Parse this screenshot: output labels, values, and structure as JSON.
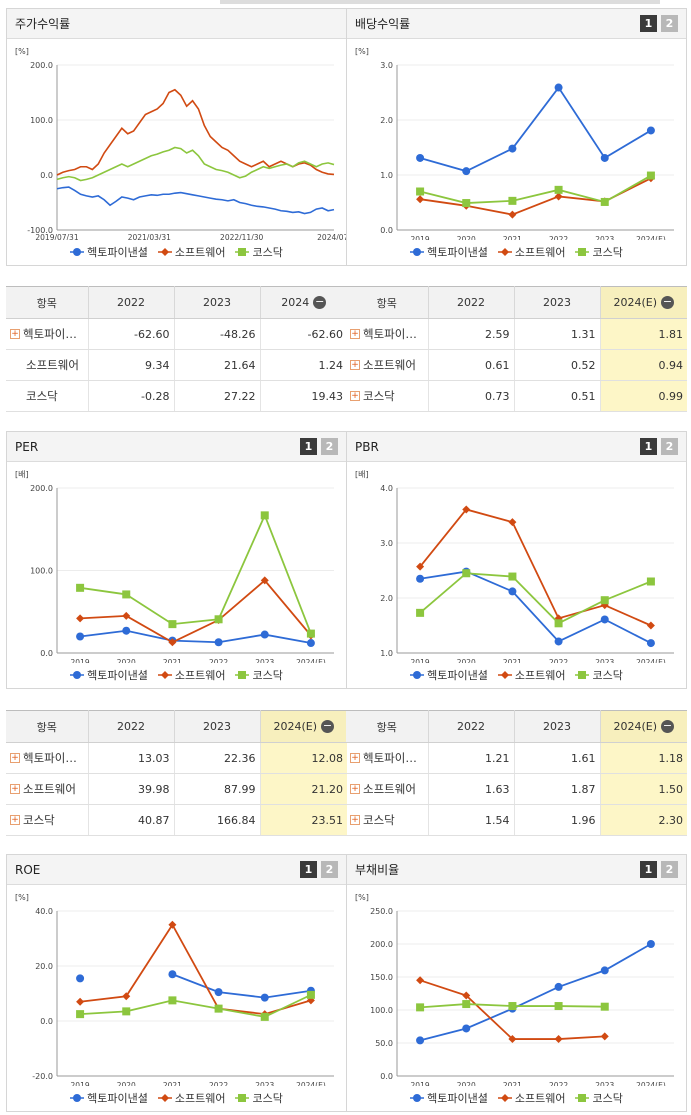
{
  "panels": [
    {
      "id": "return",
      "title": "주가수익률",
      "pager": null,
      "unit": "[%]",
      "legend": [
        "헥토파이낸셜",
        "소프트웨어",
        "코스닥"
      ],
      "table": {
        "header": [
          "항목",
          "2022",
          "2023",
          "2024"
        ],
        "rows": [
          {
            "name": "헥토파이…",
            "expand": true,
            "values": [
              "-62.60",
              "-48.26",
              "-62.60"
            ]
          },
          {
            "name": "소프트웨어",
            "expand": false,
            "values": [
              "9.34",
              "21.64",
              "1.24"
            ]
          },
          {
            "name": "코스닥",
            "expand": false,
            "values": [
              "-0.28",
              "27.22",
              "19.43"
            ]
          }
        ]
      }
    },
    {
      "id": "dividend",
      "title": "배당수익률",
      "pager": [
        "1",
        "2"
      ],
      "unit": "[%]",
      "legend": [
        "헥토파이낸셜",
        "소프트웨어",
        "코스닥"
      ],
      "table": {
        "header": [
          "항목",
          "2022",
          "2023",
          "2024(E)"
        ],
        "rows": [
          {
            "name": "헥토파이…",
            "expand": true,
            "values": [
              "2.59",
              "1.31",
              "1.81"
            ]
          },
          {
            "name": "소프트웨어",
            "expand": true,
            "values": [
              "0.61",
              "0.52",
              "0.94"
            ]
          },
          {
            "name": "코스닥",
            "expand": true,
            "values": [
              "0.73",
              "0.51",
              "0.99"
            ]
          }
        ]
      }
    },
    {
      "id": "per",
      "title": "PER",
      "pager": [
        "1",
        "2"
      ],
      "unit": "[배]",
      "legend": [
        "헥토파이낸셜",
        "소프트웨어",
        "코스닥"
      ],
      "table": {
        "header": [
          "항목",
          "2022",
          "2023",
          "2024(E)"
        ],
        "rows": [
          {
            "name": "헥토파이…",
            "expand": true,
            "values": [
              "13.03",
              "22.36",
              "12.08"
            ]
          },
          {
            "name": "소프트웨어",
            "expand": true,
            "values": [
              "39.98",
              "87.99",
              "21.20"
            ]
          },
          {
            "name": "코스닥",
            "expand": true,
            "values": [
              "40.87",
              "166.84",
              "23.51"
            ]
          }
        ]
      }
    },
    {
      "id": "pbr",
      "title": "PBR",
      "pager": [
        "1",
        "2"
      ],
      "unit": "[배]",
      "legend": [
        "헥토파이낸셜",
        "소프트웨어",
        "코스닥"
      ],
      "table": {
        "header": [
          "항목",
          "2022",
          "2023",
          "2024(E)"
        ],
        "rows": [
          {
            "name": "헥토파이…",
            "expand": true,
            "values": [
              "1.21",
              "1.61",
              "1.18"
            ]
          },
          {
            "name": "소프트웨어",
            "expand": true,
            "values": [
              "1.63",
              "1.87",
              "1.50"
            ]
          },
          {
            "name": "코스닥",
            "expand": true,
            "values": [
              "1.54",
              "1.96",
              "2.30"
            ]
          }
        ]
      }
    },
    {
      "id": "roe",
      "title": "ROE",
      "pager": [
        "1",
        "2"
      ],
      "unit": "[%]",
      "legend": [
        "헥토파이낸셜",
        "소프트웨어",
        "코스닥"
      ]
    },
    {
      "id": "debt",
      "title": "부채비율",
      "pager": [
        "1",
        "2"
      ],
      "unit": "[%]",
      "legend": [
        "헥토파이낸셜",
        "소프트웨어",
        "코스닥"
      ]
    }
  ],
  "colors": {
    "hecto": "#2e6bd6",
    "software": "#d14a12",
    "kosdaq": "#8cc63e"
  },
  "chart_data": [
    {
      "id": "return",
      "type": "line",
      "ylim": [
        -100,
        200
      ],
      "yticks": [
        "200.0",
        "100.0",
        "0.0",
        "-100.0"
      ],
      "xtick_labels": [
        "2019/07/31",
        "2021/03/31",
        "2022/11/30",
        "2024/07/"
      ],
      "series": [
        {
          "name": "헥토파이낸셜",
          "values": [
            -25,
            -23,
            -22,
            -28,
            -35,
            -38,
            -40,
            -38,
            -45,
            -55,
            -48,
            -40,
            -42,
            -45,
            -40,
            -38,
            -36,
            -37,
            -35,
            -35,
            -33,
            -32,
            -34,
            -36,
            -38,
            -40,
            -42,
            -44,
            -45,
            -47,
            -45,
            -50,
            -52,
            -55,
            -57,
            -58,
            -60,
            -62,
            -65,
            -66,
            -68,
            -67,
            -70,
            -68,
            -62,
            -60,
            -65,
            -63
          ]
        },
        {
          "name": "소프트웨어",
          "values": [
            0,
            5,
            8,
            10,
            15,
            15,
            10,
            20,
            40,
            55,
            70,
            85,
            75,
            80,
            95,
            110,
            115,
            120,
            130,
            150,
            155,
            145,
            125,
            135,
            120,
            90,
            70,
            60,
            50,
            45,
            35,
            25,
            20,
            15,
            20,
            25,
            15,
            20,
            25,
            20,
            15,
            20,
            22,
            18,
            10,
            5,
            2,
            1
          ]
        },
        {
          "name": "코스닥",
          "values": [
            -8,
            -5,
            -3,
            -5,
            -10,
            -8,
            -5,
            0,
            5,
            10,
            15,
            20,
            15,
            20,
            25,
            30,
            35,
            38,
            42,
            45,
            50,
            48,
            40,
            45,
            35,
            20,
            15,
            10,
            8,
            5,
            0,
            -5,
            -2,
            5,
            10,
            15,
            12,
            15,
            18,
            20,
            15,
            22,
            25,
            20,
            15,
            20,
            22,
            19
          ]
        }
      ]
    },
    {
      "id": "dividend",
      "type": "line",
      "ylim": [
        0,
        3
      ],
      "yticks": [
        "3.0",
        "2.0",
        "1.0",
        "0.0"
      ],
      "categories": [
        "2019",
        "2020",
        "2021",
        "2022",
        "2023",
        "2024(E)"
      ],
      "series": [
        {
          "name": "헥토파이낸셜",
          "values": [
            1.31,
            1.07,
            1.48,
            2.59,
            1.31,
            1.81
          ]
        },
        {
          "name": "소프트웨어",
          "values": [
            0.56,
            0.44,
            0.28,
            0.61,
            0.52,
            0.94
          ]
        },
        {
          "name": "코스닥",
          "values": [
            0.7,
            0.49,
            0.53,
            0.73,
            0.51,
            0.99
          ]
        }
      ]
    },
    {
      "id": "per",
      "type": "line",
      "ylim": [
        0,
        200
      ],
      "yticks": [
        "200.0",
        "100.0",
        "0.0"
      ],
      "categories": [
        "2019",
        "2020",
        "2021",
        "2022",
        "2023",
        "2024(E)"
      ],
      "series": [
        {
          "name": "헥토파이낸셜",
          "values": [
            20,
            27,
            15,
            13.03,
            22.36,
            12.08
          ]
        },
        {
          "name": "소프트웨어",
          "values": [
            42,
            45,
            13,
            39.98,
            87.99,
            21.2
          ]
        },
        {
          "name": "코스닥",
          "values": [
            79,
            71,
            35,
            40.87,
            166.84,
            23.51
          ]
        }
      ]
    },
    {
      "id": "pbr",
      "type": "line",
      "ylim": [
        1,
        4
      ],
      "yticks": [
        "4.0",
        "3.0",
        "2.0",
        "1.0"
      ],
      "categories": [
        "2019",
        "2020",
        "2021",
        "2022",
        "2023",
        "2024(E)"
      ],
      "series": [
        {
          "name": "헥토파이낸셜",
          "values": [
            2.35,
            2.48,
            2.12,
            1.21,
            1.61,
            1.18
          ]
        },
        {
          "name": "소프트웨어",
          "values": [
            2.57,
            3.61,
            3.38,
            1.63,
            1.87,
            1.5
          ]
        },
        {
          "name": "코스닥",
          "values": [
            1.73,
            2.45,
            2.39,
            1.54,
            1.96,
            2.3
          ]
        }
      ]
    },
    {
      "id": "roe",
      "type": "line",
      "ylim": [
        -20,
        40
      ],
      "yticks": [
        "40.0",
        "20.0",
        "0.0",
        "-20.0"
      ],
      "categories": [
        "2019",
        "2020",
        "2021",
        "2022",
        "2023",
        "2024(E)"
      ],
      "series": [
        {
          "name": "헥토파이낸셜",
          "values": [
            15.5,
            null,
            17,
            10.5,
            8.5,
            11
          ]
        },
        {
          "name": "소프트웨어",
          "values": [
            7,
            9,
            35,
            4.5,
            2.5,
            7.5
          ]
        },
        {
          "name": "코스닥",
          "values": [
            2.5,
            3.5,
            7.5,
            4.5,
            1.5,
            9.5
          ]
        }
      ]
    },
    {
      "id": "debt",
      "type": "line",
      "ylim": [
        0,
        250
      ],
      "yticks": [
        "250.0",
        "200.0",
        "150.0",
        "100.0",
        "50.0",
        "0.0"
      ],
      "categories": [
        "2019",
        "2020",
        "2021",
        "2022",
        "2023",
        "2024(E)"
      ],
      "series": [
        {
          "name": "헥토파이낸셜",
          "values": [
            54,
            72,
            102,
            135,
            160,
            200
          ]
        },
        {
          "name": "소프트웨어",
          "values": [
            145,
            122,
            56,
            56,
            60,
            null
          ]
        },
        {
          "name": "코스닥",
          "values": [
            104,
            109,
            106,
            106,
            105,
            null
          ]
        }
      ]
    }
  ]
}
